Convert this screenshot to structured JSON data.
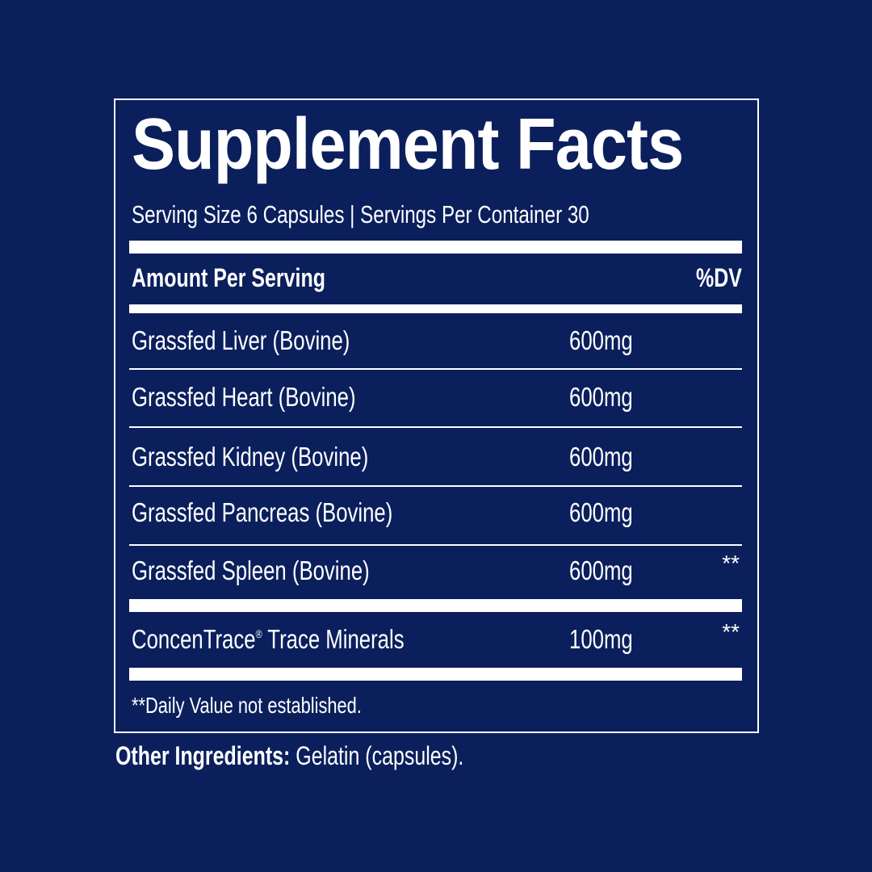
{
  "title": "Supplement Facts",
  "serving_line": "Serving Size 6 Capsules | Servings Per Container 30",
  "header": {
    "amount_label": "Amount Per Serving",
    "dv_label": "%DV"
  },
  "ingredients": [
    {
      "name": "Grassfed Liver (Bovine)",
      "amount": "600mg",
      "dv": ""
    },
    {
      "name": "Grassfed Heart (Bovine)",
      "amount": "600mg",
      "dv": ""
    },
    {
      "name": "Grassfed Kidney (Bovine)",
      "amount": "600mg",
      "dv": ""
    },
    {
      "name": "Grassfed Pancreas (Bovine)",
      "amount": "600mg",
      "dv": ""
    },
    {
      "name": "Grassfed Spleen (Bovine)",
      "amount": "600mg",
      "dv": "**"
    },
    {
      "name": "ConcenTrace",
      "registered": "®",
      "name_suffix": " Trace Minerals",
      "amount": "100mg",
      "dv": "**"
    }
  ],
  "footnote": "**Daily Value not established.",
  "other_ingredients": {
    "label": "Other Ingredients:",
    "value": " Gelatin (capsules)."
  },
  "colors": {
    "background": "#0b1f5c",
    "text": "#ffffff"
  }
}
